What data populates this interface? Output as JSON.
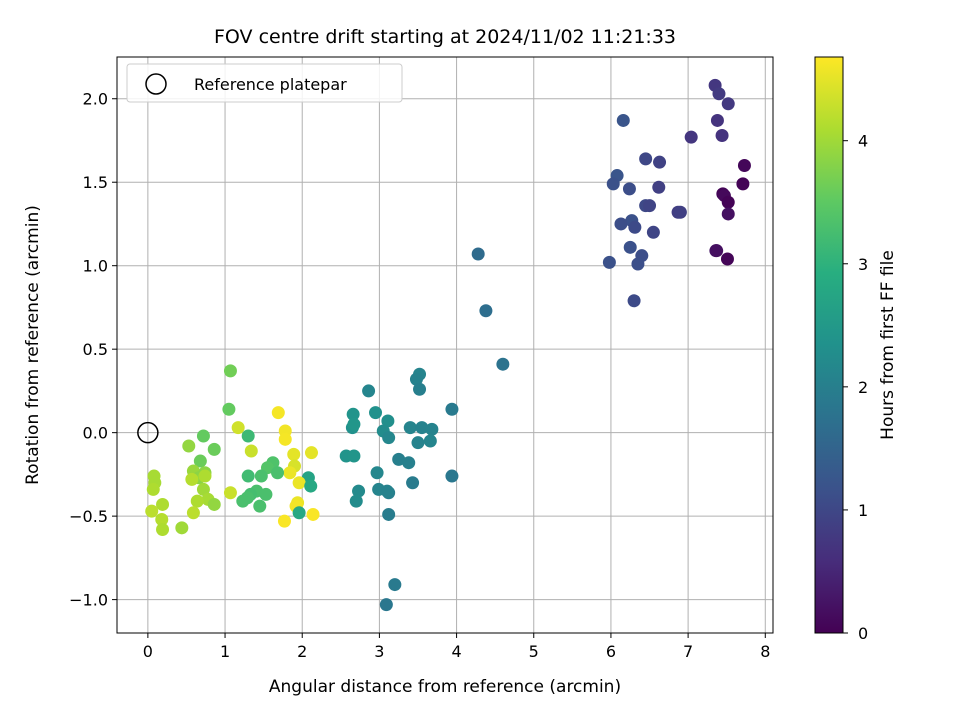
{
  "chart_data": {
    "type": "scatter",
    "title": "FOV centre drift starting at 2024/11/02 11:21:33",
    "xlabel": "Angular distance from reference (arcmin)",
    "ylabel": "Rotation from reference (arcmin)",
    "xlim": [
      -0.4,
      8.1
    ],
    "ylim": [
      -1.2,
      2.25
    ],
    "xticks": [
      0,
      1,
      2,
      3,
      4,
      5,
      6,
      7,
      8
    ],
    "xtick_labels": [
      "0",
      "1",
      "2",
      "3",
      "4",
      "5",
      "6",
      "7",
      "8"
    ],
    "yticks": [
      -1.0,
      -0.5,
      0.0,
      0.5,
      1.0,
      1.5,
      2.0
    ],
    "ytick_labels": [
      "−1.0",
      "−0.5",
      "0.0",
      "0.5",
      "1.0",
      "1.5",
      "2.0"
    ],
    "grid": true,
    "legend": {
      "position": "top-left",
      "entries": [
        "Reference platepar"
      ]
    },
    "reference_point": {
      "x": 0,
      "y": 0,
      "marker": "open-circle",
      "label": "Reference platepar"
    },
    "colorbar": {
      "label": "Hours from first FF file",
      "colormap": "viridis",
      "range": [
        0,
        4.68
      ],
      "ticks": [
        0,
        1,
        2,
        3,
        4
      ],
      "tick_labels": [
        "0",
        "1",
        "2",
        "3",
        "4"
      ]
    },
    "points": [
      {
        "x": 7.35,
        "y": 2.08,
        "c": 0.75
      },
      {
        "x": 7.4,
        "y": 2.03,
        "c": 0.8
      },
      {
        "x": 7.52,
        "y": 1.97,
        "c": 0.78
      },
      {
        "x": 6.16,
        "y": 1.87,
        "c": 1.22
      },
      {
        "x": 7.38,
        "y": 1.87,
        "c": 0.7
      },
      {
        "x": 7.44,
        "y": 1.78,
        "c": 0.68
      },
      {
        "x": 7.04,
        "y": 1.77,
        "c": 0.72
      },
      {
        "x": 6.45,
        "y": 1.64,
        "c": 1.0
      },
      {
        "x": 6.63,
        "y": 1.62,
        "c": 0.92
      },
      {
        "x": 7.73,
        "y": 1.6,
        "c": 0.08
      },
      {
        "x": 6.08,
        "y": 1.54,
        "c": 1.22
      },
      {
        "x": 6.03,
        "y": 1.49,
        "c": 1.15
      },
      {
        "x": 7.71,
        "y": 1.49,
        "c": 0.03
      },
      {
        "x": 6.24,
        "y": 1.46,
        "c": 1.1
      },
      {
        "x": 6.62,
        "y": 1.47,
        "c": 0.88
      },
      {
        "x": 7.45,
        "y": 1.43,
        "c": 0.05
      },
      {
        "x": 7.47,
        "y": 1.42,
        "c": 0.1
      },
      {
        "x": 7.52,
        "y": 1.38,
        "c": 0.03
      },
      {
        "x": 6.45,
        "y": 1.36,
        "c": 1.02
      },
      {
        "x": 6.5,
        "y": 1.36,
        "c": 0.95
      },
      {
        "x": 6.87,
        "y": 1.32,
        "c": 0.85
      },
      {
        "x": 6.9,
        "y": 1.32,
        "c": 0.88
      },
      {
        "x": 7.52,
        "y": 1.31,
        "c": 0.2
      },
      {
        "x": 6.27,
        "y": 1.27,
        "c": 1.15
      },
      {
        "x": 6.13,
        "y": 1.25,
        "c": 1.1
      },
      {
        "x": 6.31,
        "y": 1.23,
        "c": 1.05
      },
      {
        "x": 6.55,
        "y": 1.2,
        "c": 0.96
      },
      {
        "x": 6.25,
        "y": 1.11,
        "c": 1.16
      },
      {
        "x": 7.36,
        "y": 1.09,
        "c": 0.25
      },
      {
        "x": 7.37,
        "y": 1.09,
        "c": 0.18
      },
      {
        "x": 6.4,
        "y": 1.06,
        "c": 1.1
      },
      {
        "x": 7.51,
        "y": 1.04,
        "c": 0.05
      },
      {
        "x": 6.35,
        "y": 1.01,
        "c": 1.12
      },
      {
        "x": 5.98,
        "y": 1.02,
        "c": 1.15
      },
      {
        "x": 6.3,
        "y": 0.79,
        "c": 1.05
      },
      {
        "x": 4.28,
        "y": 1.07,
        "c": 1.62
      },
      {
        "x": 4.38,
        "y": 0.73,
        "c": 1.68
      },
      {
        "x": 4.6,
        "y": 0.41,
        "c": 1.78
      },
      {
        "x": 3.52,
        "y": 0.35,
        "c": 2.1
      },
      {
        "x": 3.48,
        "y": 0.32,
        "c": 2.05
      },
      {
        "x": 3.52,
        "y": 0.26,
        "c": 2.0
      },
      {
        "x": 2.86,
        "y": 0.25,
        "c": 2.12
      },
      {
        "x": 3.94,
        "y": 0.14,
        "c": 1.9
      },
      {
        "x": 2.95,
        "y": 0.12,
        "c": 2.35
      },
      {
        "x": 2.66,
        "y": 0.11,
        "c": 2.4
      },
      {
        "x": 3.11,
        "y": 0.07,
        "c": 2.3
      },
      {
        "x": 2.65,
        "y": 0.03,
        "c": 2.35
      },
      {
        "x": 2.67,
        "y": 0.05,
        "c": 2.45
      },
      {
        "x": 3.05,
        "y": 0.01,
        "c": 2.25
      },
      {
        "x": 3.4,
        "y": 0.03,
        "c": 2.1
      },
      {
        "x": 3.55,
        "y": 0.03,
        "c": 2.05
      },
      {
        "x": 3.68,
        "y": 0.02,
        "c": 2.08
      },
      {
        "x": 3.12,
        "y": -0.03,
        "c": 2.15
      },
      {
        "x": 3.5,
        "y": -0.06,
        "c": 2.08
      },
      {
        "x": 3.66,
        "y": -0.05,
        "c": 2.12
      },
      {
        "x": 2.57,
        "y": -0.14,
        "c": 2.4
      },
      {
        "x": 2.67,
        "y": -0.14,
        "c": 2.42
      },
      {
        "x": 3.25,
        "y": -0.16,
        "c": 2.0
      },
      {
        "x": 3.38,
        "y": -0.18,
        "c": 2.02
      },
      {
        "x": 2.97,
        "y": -0.24,
        "c": 2.15
      },
      {
        "x": 3.94,
        "y": -0.26,
        "c": 1.85
      },
      {
        "x": 3.43,
        "y": -0.3,
        "c": 1.92
      },
      {
        "x": 2.99,
        "y": -0.34,
        "c": 2.1
      },
      {
        "x": 2.73,
        "y": -0.35,
        "c": 2.2
      },
      {
        "x": 3.12,
        "y": -0.36,
        "c": 2.0
      },
      {
        "x": 3.1,
        "y": -0.35,
        "c": 2.05
      },
      {
        "x": 2.7,
        "y": -0.41,
        "c": 2.25
      },
      {
        "x": 3.12,
        "y": -0.49,
        "c": 1.95
      },
      {
        "x": 3.2,
        "y": -0.91,
        "c": 1.9
      },
      {
        "x": 3.09,
        "y": -1.03,
        "c": 1.85
      },
      {
        "x": 1.07,
        "y": 0.37,
        "c": 3.65
      },
      {
        "x": 1.05,
        "y": 0.14,
        "c": 3.55
      },
      {
        "x": 1.69,
        "y": 0.12,
        "c": 4.62
      },
      {
        "x": 1.17,
        "y": 0.03,
        "c": 4.35
      },
      {
        "x": 1.3,
        "y": -0.02,
        "c": 3.15
      },
      {
        "x": 1.78,
        "y": 0.01,
        "c": 4.6
      },
      {
        "x": 0.72,
        "y": -0.02,
        "c": 3.55
      },
      {
        "x": 1.78,
        "y": -0.04,
        "c": 4.62
      },
      {
        "x": 0.53,
        "y": -0.08,
        "c": 3.9
      },
      {
        "x": 0.86,
        "y": -0.1,
        "c": 3.6
      },
      {
        "x": 1.34,
        "y": -0.11,
        "c": 4.3
      },
      {
        "x": 1.89,
        "y": -0.13,
        "c": 4.5
      },
      {
        "x": 2.12,
        "y": -0.12,
        "c": 4.5
      },
      {
        "x": 0.68,
        "y": -0.17,
        "c": 3.6
      },
      {
        "x": 1.62,
        "y": -0.18,
        "c": 3.35
      },
      {
        "x": 1.9,
        "y": -0.2,
        "c": 4.4
      },
      {
        "x": 1.55,
        "y": -0.21,
        "c": 3.4
      },
      {
        "x": 0.59,
        "y": -0.23,
        "c": 3.95
      },
      {
        "x": 0.74,
        "y": -0.24,
        "c": 3.85
      },
      {
        "x": 1.84,
        "y": -0.24,
        "c": 4.55
      },
      {
        "x": 1.68,
        "y": -0.24,
        "c": 3.3
      },
      {
        "x": 1.3,
        "y": -0.26,
        "c": 3.2
      },
      {
        "x": 1.47,
        "y": -0.26,
        "c": 3.3
      },
      {
        "x": 0.08,
        "y": -0.26,
        "c": 4.05
      },
      {
        "x": 0.66,
        "y": -0.27,
        "c": 3.85
      },
      {
        "x": 0.74,
        "y": -0.26,
        "c": 4.1
      },
      {
        "x": 2.08,
        "y": -0.27,
        "c": 2.7
      },
      {
        "x": 0.57,
        "y": -0.28,
        "c": 4.15
      },
      {
        "x": 0.09,
        "y": -0.3,
        "c": 4.05
      },
      {
        "x": 1.96,
        "y": -0.3,
        "c": 4.55
      },
      {
        "x": 2.11,
        "y": -0.32,
        "c": 2.8
      },
      {
        "x": 0.07,
        "y": -0.34,
        "c": 4.1
      },
      {
        "x": 0.72,
        "y": -0.34,
        "c": 4.0
      },
      {
        "x": 1.41,
        "y": -0.35,
        "c": 3.3
      },
      {
        "x": 1.07,
        "y": -0.36,
        "c": 4.3
      },
      {
        "x": 1.33,
        "y": -0.37,
        "c": 3.25
      },
      {
        "x": 1.53,
        "y": -0.37,
        "c": 3.3
      },
      {
        "x": 1.29,
        "y": -0.39,
        "c": 3.3
      },
      {
        "x": 0.78,
        "y": -0.4,
        "c": 4.05
      },
      {
        "x": 1.23,
        "y": -0.41,
        "c": 3.3
      },
      {
        "x": 0.64,
        "y": -0.41,
        "c": 4.1
      },
      {
        "x": 0.86,
        "y": -0.43,
        "c": 3.9
      },
      {
        "x": 0.19,
        "y": -0.43,
        "c": 4.1
      },
      {
        "x": 1.94,
        "y": -0.42,
        "c": 4.55
      },
      {
        "x": 1.92,
        "y": -0.44,
        "c": 4.6
      },
      {
        "x": 1.45,
        "y": -0.44,
        "c": 3.3
      },
      {
        "x": 0.05,
        "y": -0.47,
        "c": 4.2
      },
      {
        "x": 1.96,
        "y": -0.48,
        "c": 2.8
      },
      {
        "x": 0.59,
        "y": -0.48,
        "c": 4.2
      },
      {
        "x": 2.14,
        "y": -0.49,
        "c": 4.65
      },
      {
        "x": 0.18,
        "y": -0.52,
        "c": 4.15
      },
      {
        "x": 1.77,
        "y": -0.53,
        "c": 4.65
      },
      {
        "x": 0.44,
        "y": -0.57,
        "c": 4.0
      },
      {
        "x": 0.19,
        "y": -0.58,
        "c": 4.1
      }
    ]
  }
}
